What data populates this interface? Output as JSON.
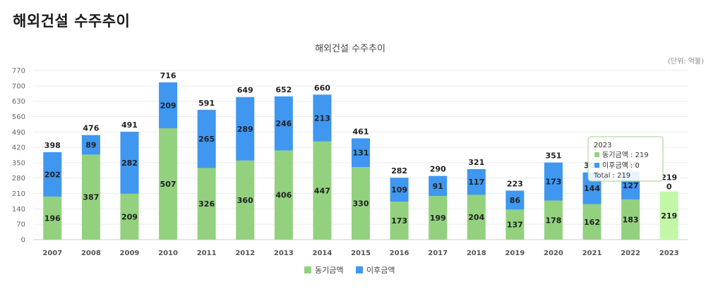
{
  "page_title": "해외건설 수주추이",
  "chart_data": {
    "type": "bar",
    "stacked": true,
    "title": "해외건설 수주추이",
    "unit": "(단위: 억불)",
    "ylim": [
      0,
      770
    ],
    "yticks": [
      0,
      70,
      140,
      210,
      280,
      350,
      420,
      490,
      560,
      630,
      700,
      770
    ],
    "grid": true,
    "legend_position": "bottom",
    "categories": [
      "2007",
      "2008",
      "2009",
      "2010",
      "2011",
      "2012",
      "2013",
      "2014",
      "2015",
      "2016",
      "2017",
      "2018",
      "2019",
      "2020",
      "2021",
      "2022",
      "2023"
    ],
    "series": [
      {
        "name": "동기금액",
        "color": "#93d17e",
        "values": [
          196,
          387,
          209,
          507,
          326,
          360,
          406,
          447,
          330,
          173,
          199,
          204,
          137,
          178,
          162,
          183,
          219
        ]
      },
      {
        "name": "이후금액",
        "color": "#3f97f0",
        "values": [
          202,
          89,
          282,
          209,
          265,
          289,
          246,
          213,
          131,
          109,
          91,
          117,
          86,
          173,
          144,
          127,
          0
        ]
      }
    ],
    "totals": [
      398,
      476,
      491,
      716,
      591,
      649,
      652,
      660,
      461,
      282,
      290,
      321,
      223,
      351,
      306,
      310,
      219
    ],
    "highlight_index": 16,
    "highlight_color": "#c3f7a8"
  },
  "tooltip": {
    "year": "2023",
    "line1": "동기금액 : 219",
    "line2": "이후금액 : 0",
    "total": "Total : 219"
  }
}
